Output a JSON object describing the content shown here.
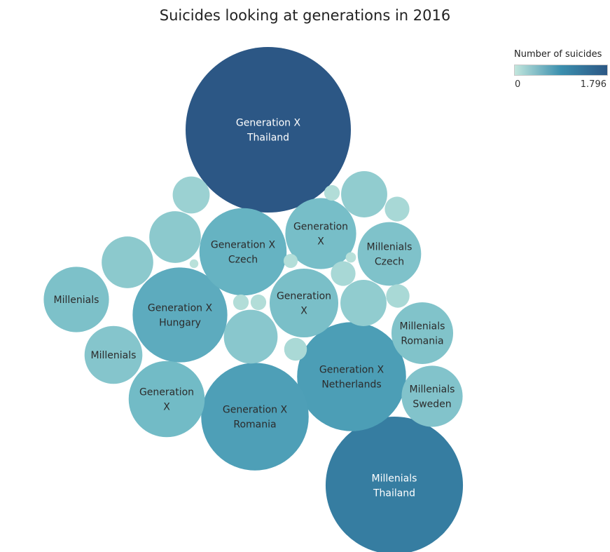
{
  "chart_data": {
    "type": "bubble",
    "title": "Suicides looking at generations in 2016",
    "legend": {
      "title": "Number of suicides",
      "min_label": "0",
      "max_label": "1.796",
      "placement": "top-right",
      "color_low": "#c2e6dd",
      "color_high": "#2c5785"
    },
    "bubbles": [
      {
        "label": [
          "Generation X",
          "Thailand"
        ],
        "value": 1796
      },
      {
        "label": [
          "Millenials",
          "Thailand"
        ],
        "value": 1240
      },
      {
        "label": [
          "Generation X",
          "Netherlands"
        ],
        "value": 780
      },
      {
        "label": [
          "Generation X",
          "Romania"
        ],
        "value": 760
      },
      {
        "label": [
          "Generation X",
          "Hungary"
        ],
        "value": 590
      },
      {
        "label": [
          "Generation X",
          "Czech"
        ],
        "value": 500
      },
      {
        "label": [
          "Generation",
          "X"
        ],
        "value": 380
      },
      {
        "label": [
          "Generation",
          "X"
        ],
        "value": 330
      },
      {
        "label": [
          "Generation",
          "X"
        ],
        "value": 310
      },
      {
        "label": [
          "Millenials"
        ],
        "value": 280
      },
      {
        "label": [
          "Millenials",
          "Czech"
        ],
        "value": 265
      },
      {
        "label": [
          "Millenials",
          "Romania"
        ],
        "value": 250
      },
      {
        "label": [
          "Millenials",
          "Sweden"
        ],
        "value": 245
      },
      {
        "label": [
          "Millenials"
        ],
        "value": 220
      },
      {
        "label": [],
        "value": 190
      },
      {
        "label": [],
        "value": 175
      },
      {
        "label": [],
        "value": 175
      },
      {
        "label": [],
        "value": 140
      },
      {
        "label": [],
        "value": 140
      },
      {
        "label": [],
        "value": 90
      },
      {
        "label": [],
        "value": 40
      },
      {
        "label": [],
        "value": 40
      },
      {
        "label": [],
        "value": 36
      },
      {
        "label": [],
        "value": 34
      },
      {
        "label": [],
        "value": 16
      },
      {
        "label": [],
        "value": 16
      },
      {
        "label": [],
        "value": 16
      },
      {
        "label": [],
        "value": 13
      },
      {
        "label": [],
        "value": 7
      },
      {
        "label": [],
        "value": 5
      }
    ]
  }
}
